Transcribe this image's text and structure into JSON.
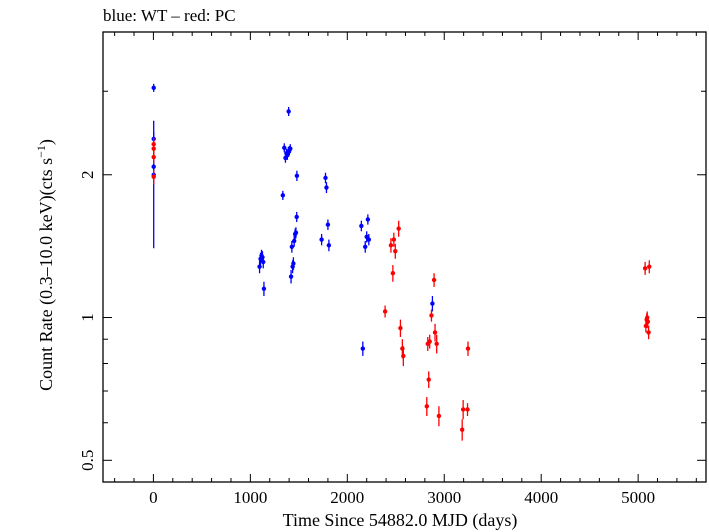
{
  "chart_data": {
    "type": "scatter",
    "title": "blue: WT – red: PC",
    "xlabel": "Time Since 54882.0 MJD (days)",
    "ylabel_main": "Count Rate (0.3–10.0 keV)(cts s",
    "ylabel_sup": "−1",
    "ylabel_end": ")",
    "y_scale": "log",
    "xlim": [
      -520,
      5700
    ],
    "ylim": [
      0.45,
      4.0
    ],
    "x_ticks": [
      {
        "value": 0,
        "label": "0"
      },
      {
        "value": 1000,
        "label": "1000"
      },
      {
        "value": 2000,
        "label": "2000"
      },
      {
        "value": 3000,
        "label": "3000"
      },
      {
        "value": 4000,
        "label": "4000"
      },
      {
        "value": 5000,
        "label": "5000"
      }
    ],
    "y_major_ticks": [
      {
        "value": 0.5,
        "label": "0.5"
      },
      {
        "value": 1,
        "label": "1"
      },
      {
        "value": 2,
        "label": "2"
      }
    ],
    "y_minor_ticks": [
      0.6,
      0.7,
      0.8,
      0.9,
      3
    ],
    "grid": false,
    "series": [
      {
        "color": "#0000ff",
        "points": [
          {
            "x": 3,
            "y": 3.05,
            "yerr_lo": 0.06,
            "yerr_hi": 0.06
          },
          {
            "x": 3,
            "y": 2.0,
            "yerr_lo": 0.6,
            "yerr_hi": 0.6
          },
          {
            "x": 3,
            "y": 2.38,
            "yerr_lo": 0.08,
            "yerr_hi": 0.08
          },
          {
            "x": 3,
            "y": 2.08,
            "yerr_lo": 0.08,
            "yerr_hi": 0.08
          },
          {
            "x": 1095,
            "y": 1.28,
            "yerr_lo": 0.04,
            "yerr_hi": 0.04
          },
          {
            "x": 1105,
            "y": 1.33,
            "yerr_lo": 0.04,
            "yerr_hi": 0.04
          },
          {
            "x": 1115,
            "y": 1.35,
            "yerr_lo": 0.04,
            "yerr_hi": 0.04
          },
          {
            "x": 1125,
            "y": 1.34,
            "yerr_lo": 0.04,
            "yerr_hi": 0.04
          },
          {
            "x": 1133,
            "y": 1.31,
            "yerr_lo": 0.04,
            "yerr_hi": 0.04
          },
          {
            "x": 1140,
            "y": 1.15,
            "yerr_lo": 0.04,
            "yerr_hi": 0.04
          },
          {
            "x": 1335,
            "y": 1.81,
            "yerr_lo": 0.04,
            "yerr_hi": 0.04
          },
          {
            "x": 1350,
            "y": 2.28,
            "yerr_lo": 0.05,
            "yerr_hi": 0.05
          },
          {
            "x": 1362,
            "y": 2.17,
            "yerr_lo": 0.05,
            "yerr_hi": 0.05
          },
          {
            "x": 1372,
            "y": 2.22,
            "yerr_lo": 0.05,
            "yerr_hi": 0.05
          },
          {
            "x": 1382,
            "y": 2.2,
            "yerr_lo": 0.05,
            "yerr_hi": 0.05
          },
          {
            "x": 1392,
            "y": 2.24,
            "yerr_lo": 0.05,
            "yerr_hi": 0.05
          },
          {
            "x": 1402,
            "y": 2.25,
            "yerr_lo": 0.05,
            "yerr_hi": 0.05
          },
          {
            "x": 1395,
            "y": 2.72,
            "yerr_lo": 0.06,
            "yerr_hi": 0.06
          },
          {
            "x": 1412,
            "y": 2.27,
            "yerr_lo": 0.05,
            "yerr_hi": 0.05
          },
          {
            "x": 1420,
            "y": 1.22,
            "yerr_lo": 0.04,
            "yerr_hi": 0.04
          },
          {
            "x": 1428,
            "y": 1.41,
            "yerr_lo": 0.04,
            "yerr_hi": 0.04
          },
          {
            "x": 1436,
            "y": 1.28,
            "yerr_lo": 0.04,
            "yerr_hi": 0.04
          },
          {
            "x": 1444,
            "y": 1.3,
            "yerr_lo": 0.04,
            "yerr_hi": 0.04
          },
          {
            "x": 1452,
            "y": 1.45,
            "yerr_lo": 0.04,
            "yerr_hi": 0.04
          },
          {
            "x": 1462,
            "y": 1.5,
            "yerr_lo": 0.04,
            "yerr_hi": 0.04
          },
          {
            "x": 1470,
            "y": 1.51,
            "yerr_lo": 0.04,
            "yerr_hi": 0.04
          },
          {
            "x": 1478,
            "y": 1.63,
            "yerr_lo": 0.04,
            "yerr_hi": 0.04
          },
          {
            "x": 1480,
            "y": 1.99,
            "yerr_lo": 0.05,
            "yerr_hi": 0.05
          },
          {
            "x": 1735,
            "y": 1.46,
            "yerr_lo": 0.04,
            "yerr_hi": 0.04
          },
          {
            "x": 1775,
            "y": 1.97,
            "yerr_lo": 0.05,
            "yerr_hi": 0.05
          },
          {
            "x": 1785,
            "y": 1.88,
            "yerr_lo": 0.05,
            "yerr_hi": 0.05
          },
          {
            "x": 1800,
            "y": 1.57,
            "yerr_lo": 0.04,
            "yerr_hi": 0.04
          },
          {
            "x": 1810,
            "y": 1.42,
            "yerr_lo": 0.04,
            "yerr_hi": 0.04
          },
          {
            "x": 2145,
            "y": 1.56,
            "yerr_lo": 0.04,
            "yerr_hi": 0.04
          },
          {
            "x": 2160,
            "y": 0.86,
            "yerr_lo": 0.03,
            "yerr_hi": 0.03
          },
          {
            "x": 2185,
            "y": 1.41,
            "yerr_lo": 0.04,
            "yerr_hi": 0.04
          },
          {
            "x": 2200,
            "y": 1.48,
            "yerr_lo": 0.04,
            "yerr_hi": 0.04
          },
          {
            "x": 2212,
            "y": 1.61,
            "yerr_lo": 0.04,
            "yerr_hi": 0.04
          },
          {
            "x": 2222,
            "y": 1.46,
            "yerr_lo": 0.04,
            "yerr_hi": 0.04
          },
          {
            "x": 2878,
            "y": 1.07,
            "yerr_lo": 0.04,
            "yerr_hi": 0.04
          }
        ]
      },
      {
        "color": "#ff0000",
        "points": [
          {
            "x": 3,
            "y": 1.98,
            "yerr_lo": 0.07,
            "yerr_hi": 0.07
          },
          {
            "x": 3,
            "y": 2.18,
            "yerr_lo": 0.07,
            "yerr_hi": 0.07
          },
          {
            "x": 3,
            "y": 2.27,
            "yerr_lo": 0.07,
            "yerr_hi": 0.07
          },
          {
            "x": 3,
            "y": 2.32,
            "yerr_lo": 0.07,
            "yerr_hi": 0.07
          },
          {
            "x": 2390,
            "y": 1.03,
            "yerr_lo": 0.03,
            "yerr_hi": 0.03
          },
          {
            "x": 2450,
            "y": 1.42,
            "yerr_lo": 0.05,
            "yerr_hi": 0.05
          },
          {
            "x": 2470,
            "y": 1.24,
            "yerr_lo": 0.05,
            "yerr_hi": 0.05
          },
          {
            "x": 2480,
            "y": 1.46,
            "yerr_lo": 0.05,
            "yerr_hi": 0.05
          },
          {
            "x": 2495,
            "y": 1.38,
            "yerr_lo": 0.05,
            "yerr_hi": 0.05
          },
          {
            "x": 2530,
            "y": 1.54,
            "yerr_lo": 0.06,
            "yerr_hi": 0.06
          },
          {
            "x": 2548,
            "y": 0.95,
            "yerr_lo": 0.04,
            "yerr_hi": 0.04
          },
          {
            "x": 2568,
            "y": 0.86,
            "yerr_lo": 0.04,
            "yerr_hi": 0.04
          },
          {
            "x": 2578,
            "y": 0.83,
            "yerr_lo": 0.04,
            "yerr_hi": 0.04
          },
          {
            "x": 2820,
            "y": 0.65,
            "yerr_lo": 0.03,
            "yerr_hi": 0.03
          },
          {
            "x": 2830,
            "y": 0.88,
            "yerr_lo": 0.03,
            "yerr_hi": 0.03
          },
          {
            "x": 2840,
            "y": 0.74,
            "yerr_lo": 0.03,
            "yerr_hi": 0.03
          },
          {
            "x": 2850,
            "y": 0.89,
            "yerr_lo": 0.03,
            "yerr_hi": 0.03
          },
          {
            "x": 2868,
            "y": 1.01,
            "yerr_lo": 0.03,
            "yerr_hi": 0.03
          },
          {
            "x": 2895,
            "y": 1.2,
            "yerr_lo": 0.04,
            "yerr_hi": 0.04
          },
          {
            "x": 2905,
            "y": 0.93,
            "yerr_lo": 0.04,
            "yerr_hi": 0.04
          },
          {
            "x": 2922,
            "y": 0.88,
            "yerr_lo": 0.04,
            "yerr_hi": 0.04
          },
          {
            "x": 2945,
            "y": 0.62,
            "yerr_lo": 0.03,
            "yerr_hi": 0.03
          },
          {
            "x": 3185,
            "y": 0.58,
            "yerr_lo": 0.03,
            "yerr_hi": 0.03
          },
          {
            "x": 3195,
            "y": 0.64,
            "yerr_lo": 0.03,
            "yerr_hi": 0.03
          },
          {
            "x": 3240,
            "y": 0.64,
            "yerr_lo": 0.02,
            "yerr_hi": 0.02
          },
          {
            "x": 3245,
            "y": 0.86,
            "yerr_lo": 0.03,
            "yerr_hi": 0.03
          },
          {
            "x": 5072,
            "y": 1.27,
            "yerr_lo": 0.04,
            "yerr_hi": 0.04
          },
          {
            "x": 5080,
            "y": 0.96,
            "yerr_lo": 0.03,
            "yerr_hi": 0.03
          },
          {
            "x": 5088,
            "y": 0.99,
            "yerr_lo": 0.03,
            "yerr_hi": 0.03
          },
          {
            "x": 5094,
            "y": 1.0,
            "yerr_lo": 0.03,
            "yerr_hi": 0.03
          },
          {
            "x": 5100,
            "y": 0.98,
            "yerr_lo": 0.03,
            "yerr_hi": 0.03
          },
          {
            "x": 5108,
            "y": 0.93,
            "yerr_lo": 0.03,
            "yerr_hi": 0.03
          },
          {
            "x": 5115,
            "y": 1.28,
            "yerr_lo": 0.04,
            "yerr_hi": 0.04
          }
        ]
      }
    ]
  }
}
